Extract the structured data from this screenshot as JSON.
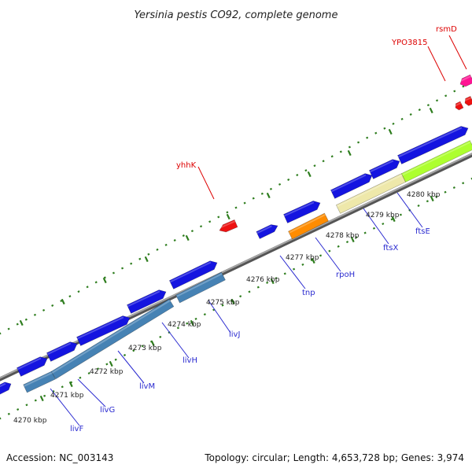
{
  "title": "Yersinia pestis CO92, complete genome",
  "footer": {
    "accession": "Accession: NC_003143",
    "summary": "Topology: circular; Length: 4,653,728 bp; Genes: 3,974"
  },
  "colors": {
    "backbone": "#8a8a8a",
    "dots": "#2e7d1e",
    "gene_blue": "#1414e0",
    "gene_steel": "#4682b4",
    "gene_red": "#ee1111",
    "gene_pink": "#ff1493",
    "gene_orange": "#ff8c00",
    "gene_khaki": "#eee8aa",
    "gene_lime": "#adff2f",
    "label_red": "#dd0000",
    "label_blue": "#2a2ad0"
  },
  "kbp_ticks": [
    "4270 kbp",
    "4271 kbp",
    "4272 kbp",
    "4273 kbp",
    "4274 kbp",
    "4275 kbp",
    "4276 kbp",
    "4277 kbp",
    "4278 kbp",
    "4279 kbp",
    "4280 kbp"
  ],
  "gene_labels": [
    {
      "text": "livF",
      "color": "blue"
    },
    {
      "text": "livG",
      "color": "blue"
    },
    {
      "text": "livM",
      "color": "blue"
    },
    {
      "text": "livH",
      "color": "blue"
    },
    {
      "text": "livJ",
      "color": "blue"
    },
    {
      "text": "tnp",
      "color": "blue"
    },
    {
      "text": "rpoH",
      "color": "blue"
    },
    {
      "text": "ftsX",
      "color": "blue"
    },
    {
      "text": "ftsE",
      "color": "blue"
    },
    {
      "text": "yhhK",
      "color": "red"
    },
    {
      "text": "YPO3815",
      "color": "red"
    },
    {
      "text": "rsmD",
      "color": "red"
    }
  ]
}
